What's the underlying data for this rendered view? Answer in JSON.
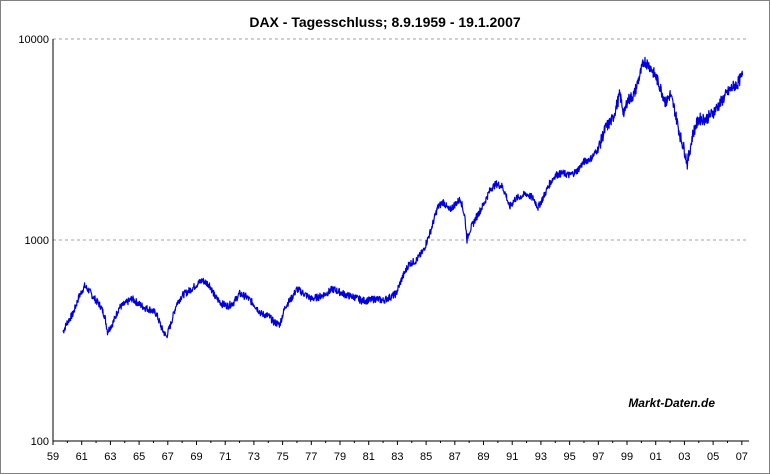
{
  "chart_data": {
    "type": "line",
    "title": "DAX - Tagesschluss; 8.9.1959 - 19.1.2007",
    "watermark": "Markt-Daten.de",
    "xlabel": "",
    "ylabel": "",
    "y_scale": "log",
    "ylim": [
      100,
      10000
    ],
    "xlim": [
      1959,
      2007.5
    ],
    "y_ticks": [
      100,
      1000,
      10000
    ],
    "x_ticks": [
      1959,
      1961,
      1963,
      1965,
      1967,
      1969,
      1971,
      1973,
      1975,
      1977,
      1979,
      1981,
      1983,
      1985,
      1987,
      1989,
      1991,
      1993,
      1995,
      1997,
      1999,
      2001,
      2003,
      2005,
      2007
    ],
    "x_tick_labels": [
      "59",
      "61",
      "63",
      "65",
      "67",
      "69",
      "71",
      "73",
      "75",
      "77",
      "79",
      "81",
      "83",
      "85",
      "87",
      "89",
      "91",
      "93",
      "95",
      "97",
      "99",
      "01",
      "03",
      "05",
      "07"
    ],
    "grid": "horizontal dashed",
    "line_color": "#0000dd",
    "series": [
      {
        "x": [
          1959.7,
          1960.0,
          1960.4,
          1960.8,
          1961.2,
          1961.5,
          1961.9,
          1962.3,
          1962.6,
          1962.8,
          1963.2,
          1963.6,
          1964.0,
          1964.5,
          1965.0,
          1965.4,
          1965.8,
          1966.2,
          1966.6,
          1966.9,
          1967.2,
          1967.6,
          1968.0,
          1968.5,
          1969.0,
          1969.4,
          1969.9,
          1970.3,
          1970.8,
          1971.2,
          1971.6,
          1972.0,
          1972.5,
          1973.0,
          1973.5,
          1974.0,
          1974.4,
          1974.8,
          1975.2,
          1975.6,
          1976.0,
          1976.5,
          1977.0,
          1977.5,
          1978.0,
          1978.5,
          1979.0,
          1979.5,
          1980.0,
          1980.5,
          1981.0,
          1981.5,
          1982.0,
          1982.5,
          1982.9,
          1983.3,
          1983.8,
          1984.3,
          1984.8,
          1985.3,
          1985.8,
          1986.2,
          1986.6,
          1987.0,
          1987.4,
          1987.7,
          1987.85,
          1988.0,
          1988.5,
          1989.0,
          1989.5,
          1989.9,
          1990.3,
          1990.6,
          1990.8,
          1991.2,
          1991.6,
          1992.0,
          1992.5,
          1992.8,
          1993.2,
          1993.6,
          1994.0,
          1994.5,
          1995.0,
          1995.5,
          1996.0,
          1996.5,
          1997.0,
          1997.5,
          1998.0,
          1998.5,
          1998.8,
          1999.0,
          1999.5,
          2000.0,
          2000.2,
          2000.6,
          2001.0,
          2001.3,
          2001.7,
          2002.0,
          2002.3,
          2002.7,
          2003.0,
          2003.2,
          2003.6,
          2004.0,
          2004.5,
          2005.0,
          2005.5,
          2006.0,
          2006.4,
          2006.7,
          2007.05
        ],
        "y": [
          350,
          390,
          430,
          520,
          590,
          560,
          510,
          470,
          420,
          350,
          390,
          460,
          480,
          510,
          480,
          460,
          450,
          430,
          360,
          330,
          380,
          480,
          530,
          560,
          600,
          630,
          600,
          520,
          480,
          470,
          490,
          540,
          520,
          480,
          430,
          420,
          390,
          380,
          470,
          510,
          570,
          540,
          510,
          520,
          540,
          570,
          550,
          530,
          520,
          500,
          500,
          510,
          500,
          520,
          540,
          640,
          760,
          790,
          880,
          1100,
          1450,
          1550,
          1400,
          1500,
          1600,
          1300,
          1000,
          1100,
          1300,
          1500,
          1800,
          1900,
          1850,
          1650,
          1450,
          1600,
          1650,
          1700,
          1600,
          1450,
          1650,
          1900,
          2100,
          2150,
          2100,
          2200,
          2450,
          2550,
          2850,
          3600,
          4000,
          5300,
          4200,
          4900,
          5300,
          7000,
          7800,
          7300,
          6500,
          5800,
          4800,
          5300,
          4500,
          3300,
          2800,
          2400,
          3400,
          4000,
          4000,
          4300,
          4800,
          5400,
          5800,
          6000,
          6600
        ]
      }
    ]
  }
}
